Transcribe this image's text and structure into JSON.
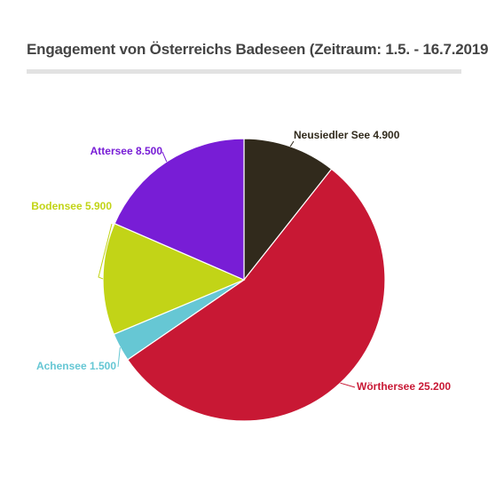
{
  "chart_data": {
    "type": "pie",
    "title": "Engagement von Österreichs Badeseen (Zeitraum: 1.5. - 16.7.2019)",
    "slices": [
      {
        "name": "Neusiedler See",
        "value": 4900,
        "value_label": "4.900",
        "color": "#312a1c"
      },
      {
        "name": "Wörthersee",
        "value": 25200,
        "value_label": "25.200",
        "color": "#c81834"
      },
      {
        "name": "Achensee",
        "value": 1500,
        "value_label": "1.500",
        "color": "#66c7d4"
      },
      {
        "name": "Bodensee",
        "value": 5900,
        "value_label": "5.900",
        "color": "#c2d417"
      },
      {
        "name": "Attersee",
        "value": 8500,
        "value_label": "8.500",
        "color": "#781dd6"
      }
    ],
    "start_angle_deg": 0,
    "direction": "clockwise",
    "legend": "none"
  }
}
